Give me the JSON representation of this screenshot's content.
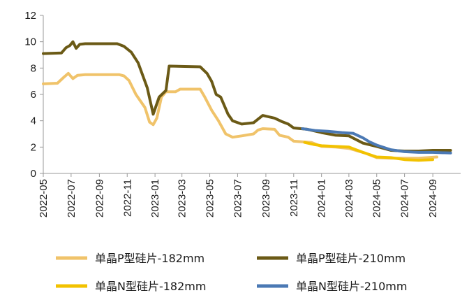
{
  "chart_data": {
    "type": "line",
    "title": "",
    "xlabel": "",
    "ylabel": "",
    "ylim": [
      0,
      12
    ],
    "yticks": [
      0,
      2,
      4,
      6,
      8,
      10,
      12
    ],
    "x_tick_labels": [
      "2022-05",
      "2022-07",
      "2022-09",
      "2022-11",
      "2023-01",
      "2023-03",
      "2023-05",
      "2023-07",
      "2023-09",
      "2023-11",
      "2024-01",
      "2024-03",
      "2024-05",
      "2024-07",
      "2024-09"
    ],
    "grid": false,
    "legend_position": "bottom",
    "series": [
      {
        "name": "单晶P型硅片-182mm",
        "color": "#f0c36a",
        "points": [
          [
            "2022-05-01",
            6.8
          ],
          [
            "2022-06-01",
            6.85
          ],
          [
            "2022-06-15",
            7.3
          ],
          [
            "2022-06-25",
            7.6
          ],
          [
            "2022-07-05",
            7.2
          ],
          [
            "2022-07-15",
            7.45
          ],
          [
            "2022-08-01",
            7.5
          ],
          [
            "2022-10-15",
            7.5
          ],
          [
            "2022-10-25",
            7.4
          ],
          [
            "2022-11-05",
            7.05
          ],
          [
            "2022-11-20",
            6.0
          ],
          [
            "2022-12-10",
            5.0
          ],
          [
            "2022-12-20",
            3.9
          ],
          [
            "2022-12-28",
            3.7
          ],
          [
            "2023-01-05",
            4.2
          ],
          [
            "2023-01-15",
            5.8
          ],
          [
            "2023-01-25",
            6.2
          ],
          [
            "2023-02-15",
            6.2
          ],
          [
            "2023-02-25",
            6.4
          ],
          [
            "2023-04-10",
            6.4
          ],
          [
            "2023-04-20",
            5.8
          ],
          [
            "2023-05-05",
            4.8
          ],
          [
            "2023-05-20",
            4.0
          ],
          [
            "2023-06-05",
            3.0
          ],
          [
            "2023-06-20",
            2.75
          ],
          [
            "2023-07-10",
            2.85
          ],
          [
            "2023-08-05",
            3.0
          ],
          [
            "2023-08-15",
            3.3
          ],
          [
            "2023-08-25",
            3.4
          ],
          [
            "2023-09-20",
            3.35
          ],
          [
            "2023-10-01",
            2.9
          ],
          [
            "2023-10-20",
            2.75
          ],
          [
            "2023-11-01",
            2.45
          ],
          [
            "2023-12-10",
            2.35
          ],
          [
            "2024-01-01",
            2.05
          ],
          [
            "2024-02-01",
            2.0
          ],
          [
            "2024-03-01",
            1.9
          ],
          [
            "2024-04-05",
            1.55
          ],
          [
            "2024-05-01",
            1.2
          ],
          [
            "2024-06-01",
            1.15
          ],
          [
            "2024-07-01",
            1.15
          ],
          [
            "2024-08-01",
            1.15
          ],
          [
            "2024-09-10",
            1.25
          ]
        ]
      },
      {
        "name": "单晶P型硅片-210mm",
        "color": "#6b5a16",
        "points": [
          [
            "2022-05-01",
            9.1
          ],
          [
            "2022-06-10",
            9.15
          ],
          [
            "2022-06-20",
            9.55
          ],
          [
            "2022-06-28",
            9.7
          ],
          [
            "2022-07-05",
            10.0
          ],
          [
            "2022-07-12",
            9.5
          ],
          [
            "2022-07-20",
            9.8
          ],
          [
            "2022-08-01",
            9.85
          ],
          [
            "2022-10-10",
            9.85
          ],
          [
            "2022-10-25",
            9.65
          ],
          [
            "2022-11-10",
            9.2
          ],
          [
            "2022-11-25",
            8.4
          ],
          [
            "2022-12-15",
            6.5
          ],
          [
            "2022-12-28",
            4.5
          ],
          [
            "2023-01-10",
            5.8
          ],
          [
            "2023-01-25",
            6.3
          ],
          [
            "2023-02-01",
            8.15
          ],
          [
            "2023-04-10",
            8.1
          ],
          [
            "2023-04-25",
            7.6
          ],
          [
            "2023-05-05",
            7.0
          ],
          [
            "2023-05-15",
            6.0
          ],
          [
            "2023-05-25",
            5.8
          ],
          [
            "2023-06-10",
            4.5
          ],
          [
            "2023-06-20",
            4.0
          ],
          [
            "2023-07-10",
            3.75
          ],
          [
            "2023-08-05",
            3.85
          ],
          [
            "2023-08-25",
            4.4
          ],
          [
            "2023-09-20",
            4.2
          ],
          [
            "2023-10-05",
            3.95
          ],
          [
            "2023-10-20",
            3.75
          ],
          [
            "2023-11-01",
            3.45
          ],
          [
            "2023-12-01",
            3.35
          ],
          [
            "2024-01-01",
            3.1
          ],
          [
            "2024-02-01",
            2.9
          ],
          [
            "2024-03-01",
            2.85
          ],
          [
            "2024-04-01",
            2.3
          ],
          [
            "2024-05-01",
            2.05
          ],
          [
            "2024-06-01",
            1.75
          ],
          [
            "2024-07-01",
            1.7
          ],
          [
            "2024-08-01",
            1.7
          ],
          [
            "2024-09-01",
            1.75
          ],
          [
            "2024-10-10",
            1.75
          ]
        ]
      },
      {
        "name": "单晶N型硅片-182mm",
        "color": "#f2c200",
        "points": [
          [
            "2023-11-25",
            2.35
          ],
          [
            "2023-12-15",
            2.2
          ],
          [
            "2024-01-01",
            2.1
          ],
          [
            "2024-02-01",
            2.05
          ],
          [
            "2024-03-01",
            2.0
          ],
          [
            "2024-04-01",
            1.6
          ],
          [
            "2024-05-01",
            1.25
          ],
          [
            "2024-06-01",
            1.2
          ],
          [
            "2024-07-01",
            1.05
          ],
          [
            "2024-08-01",
            1.0
          ],
          [
            "2024-09-01",
            1.05
          ]
        ]
      },
      {
        "name": "单晶N型硅片-210mm",
        "color": "#4b79b4",
        "points": [
          [
            "2023-11-20",
            3.4
          ],
          [
            "2023-12-20",
            3.25
          ],
          [
            "2024-01-15",
            3.2
          ],
          [
            "2024-02-15",
            3.1
          ],
          [
            "2024-03-10",
            3.05
          ],
          [
            "2024-04-01",
            2.7
          ],
          [
            "2024-04-15",
            2.4
          ],
          [
            "2024-05-01",
            2.15
          ],
          [
            "2024-06-01",
            1.8
          ],
          [
            "2024-07-01",
            1.65
          ],
          [
            "2024-08-01",
            1.6
          ],
          [
            "2024-09-01",
            1.6
          ],
          [
            "2024-10-10",
            1.55
          ]
        ]
      }
    ]
  }
}
